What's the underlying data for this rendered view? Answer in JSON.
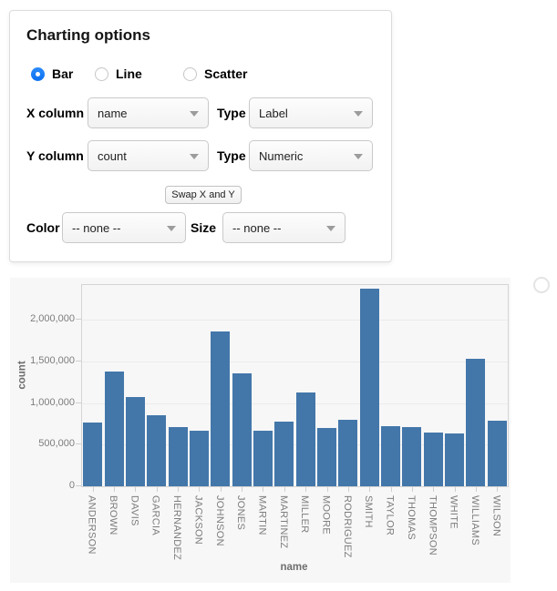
{
  "panel": {
    "title": "Charting options",
    "chart_types": [
      {
        "label": "Bar",
        "selected": true
      },
      {
        "label": "Line",
        "selected": false
      },
      {
        "label": "Scatter",
        "selected": false
      }
    ],
    "x_row": {
      "label": "X column",
      "value": "name",
      "type_label": "Type",
      "type_value": "Label"
    },
    "y_row": {
      "label": "Y column",
      "value": "count",
      "type_label": "Type",
      "type_value": "Numeric"
    },
    "swap_label": "Swap X and Y",
    "color_row": {
      "label": "Color",
      "value": "-- none --"
    },
    "size_row": {
      "label": "Size",
      "value": "-- none --"
    }
  },
  "chart_data": {
    "type": "bar",
    "title": "",
    "xlabel": "name",
    "ylabel": "count",
    "categories": [
      "ANDERSON",
      "BROWN",
      "DAVIS",
      "GARCIA",
      "HERNANDEZ",
      "JACKSON",
      "JOHNSON",
      "JONES",
      "MARTIN",
      "MARTINEZ",
      "MILLER",
      "MOORE",
      "RODRIGUEZ",
      "SMITH",
      "TAYLOR",
      "THOMAS",
      "THOMPSON",
      "WHITE",
      "WILLIAMS",
      "WILSON"
    ],
    "values": [
      762394,
      1380145,
      1072335,
      858289,
      706372,
      666125,
      1857160,
      1362755,
      672711,
      775072,
      1127803,
      698671,
      804240,
      2376206,
      720370,
      710696,
      644368,
      639515,
      1534042,
      783051
    ],
    "yticks": [
      {
        "label": "0",
        "value": 0
      },
      {
        "label": "500,000",
        "value": 500000
      },
      {
        "label": "1,000,000",
        "value": 1000000
      },
      {
        "label": "1,500,000",
        "value": 1500000
      },
      {
        "label": "2,000,000",
        "value": 2000000
      }
    ],
    "ylim": [
      0,
      2420000
    ],
    "grid": true,
    "legend": false,
    "bar_color": "#4377aa"
  },
  "colors": {
    "accent_blue": "#0d78f2",
    "bar": "#4377aa",
    "chart_bg": "#f7f7f7",
    "axis_text": "#7d7d7d"
  }
}
